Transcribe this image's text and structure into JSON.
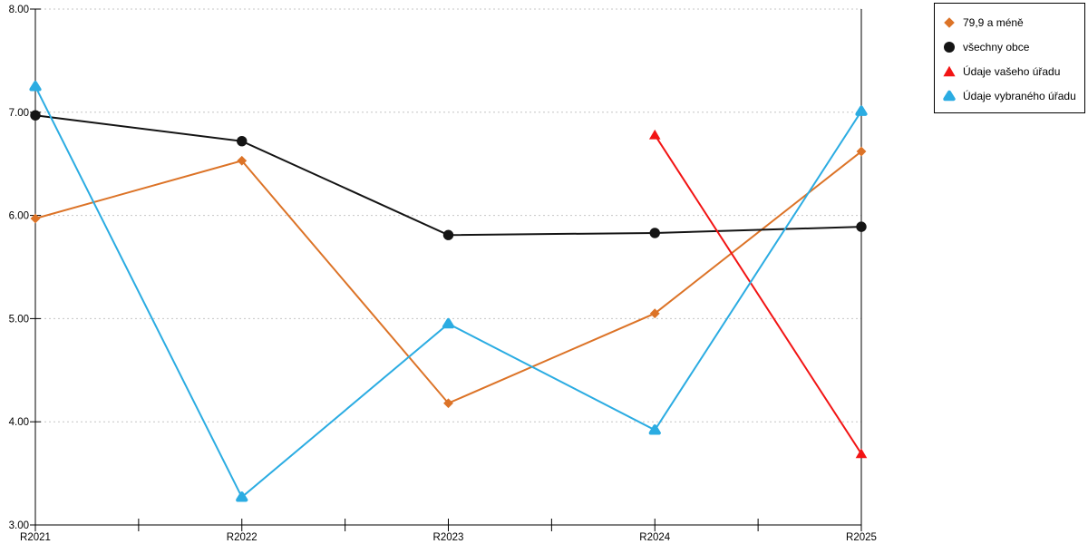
{
  "chart_data": {
    "type": "line",
    "title": "",
    "xlabel": "",
    "ylabel": "",
    "categories": [
      "R2021",
      "R2022",
      "R2023",
      "R2024",
      "R2025"
    ],
    "y_ticks": [
      "8.00",
      "7.00",
      "6.00",
      "5.00",
      "4.00",
      "3.00"
    ],
    "ylim": [
      3.0,
      8.0
    ],
    "grid": "horizontal dashed gridlines at each 1.00",
    "legend_position": "outside top-right boxed",
    "series": [
      {
        "name": "79,9 a méně",
        "marker": "diamond",
        "color": "#DC7327",
        "values": [
          5.97,
          6.53,
          4.18,
          5.05,
          6.62
        ]
      },
      {
        "name": "všechny obce",
        "marker": "circle",
        "color": "#141414",
        "values": [
          6.97,
          6.72,
          5.81,
          5.83,
          5.89
        ]
      },
      {
        "name": "Údaje vašeho úřadu",
        "marker": "triangle",
        "color": "#F21414",
        "values": [
          null,
          null,
          null,
          6.78,
          3.69
        ]
      },
      {
        "name": "Údaje vybraného úřadu",
        "marker": "triangle-rounded",
        "color": "#2BACE2",
        "values": [
          7.25,
          3.27,
          4.95,
          3.92,
          7.01
        ]
      }
    ],
    "colors": {
      "grid": "#C6C6C6",
      "axis": "#000000",
      "tick_label": "#000000",
      "background": "#FFFFFF"
    }
  }
}
